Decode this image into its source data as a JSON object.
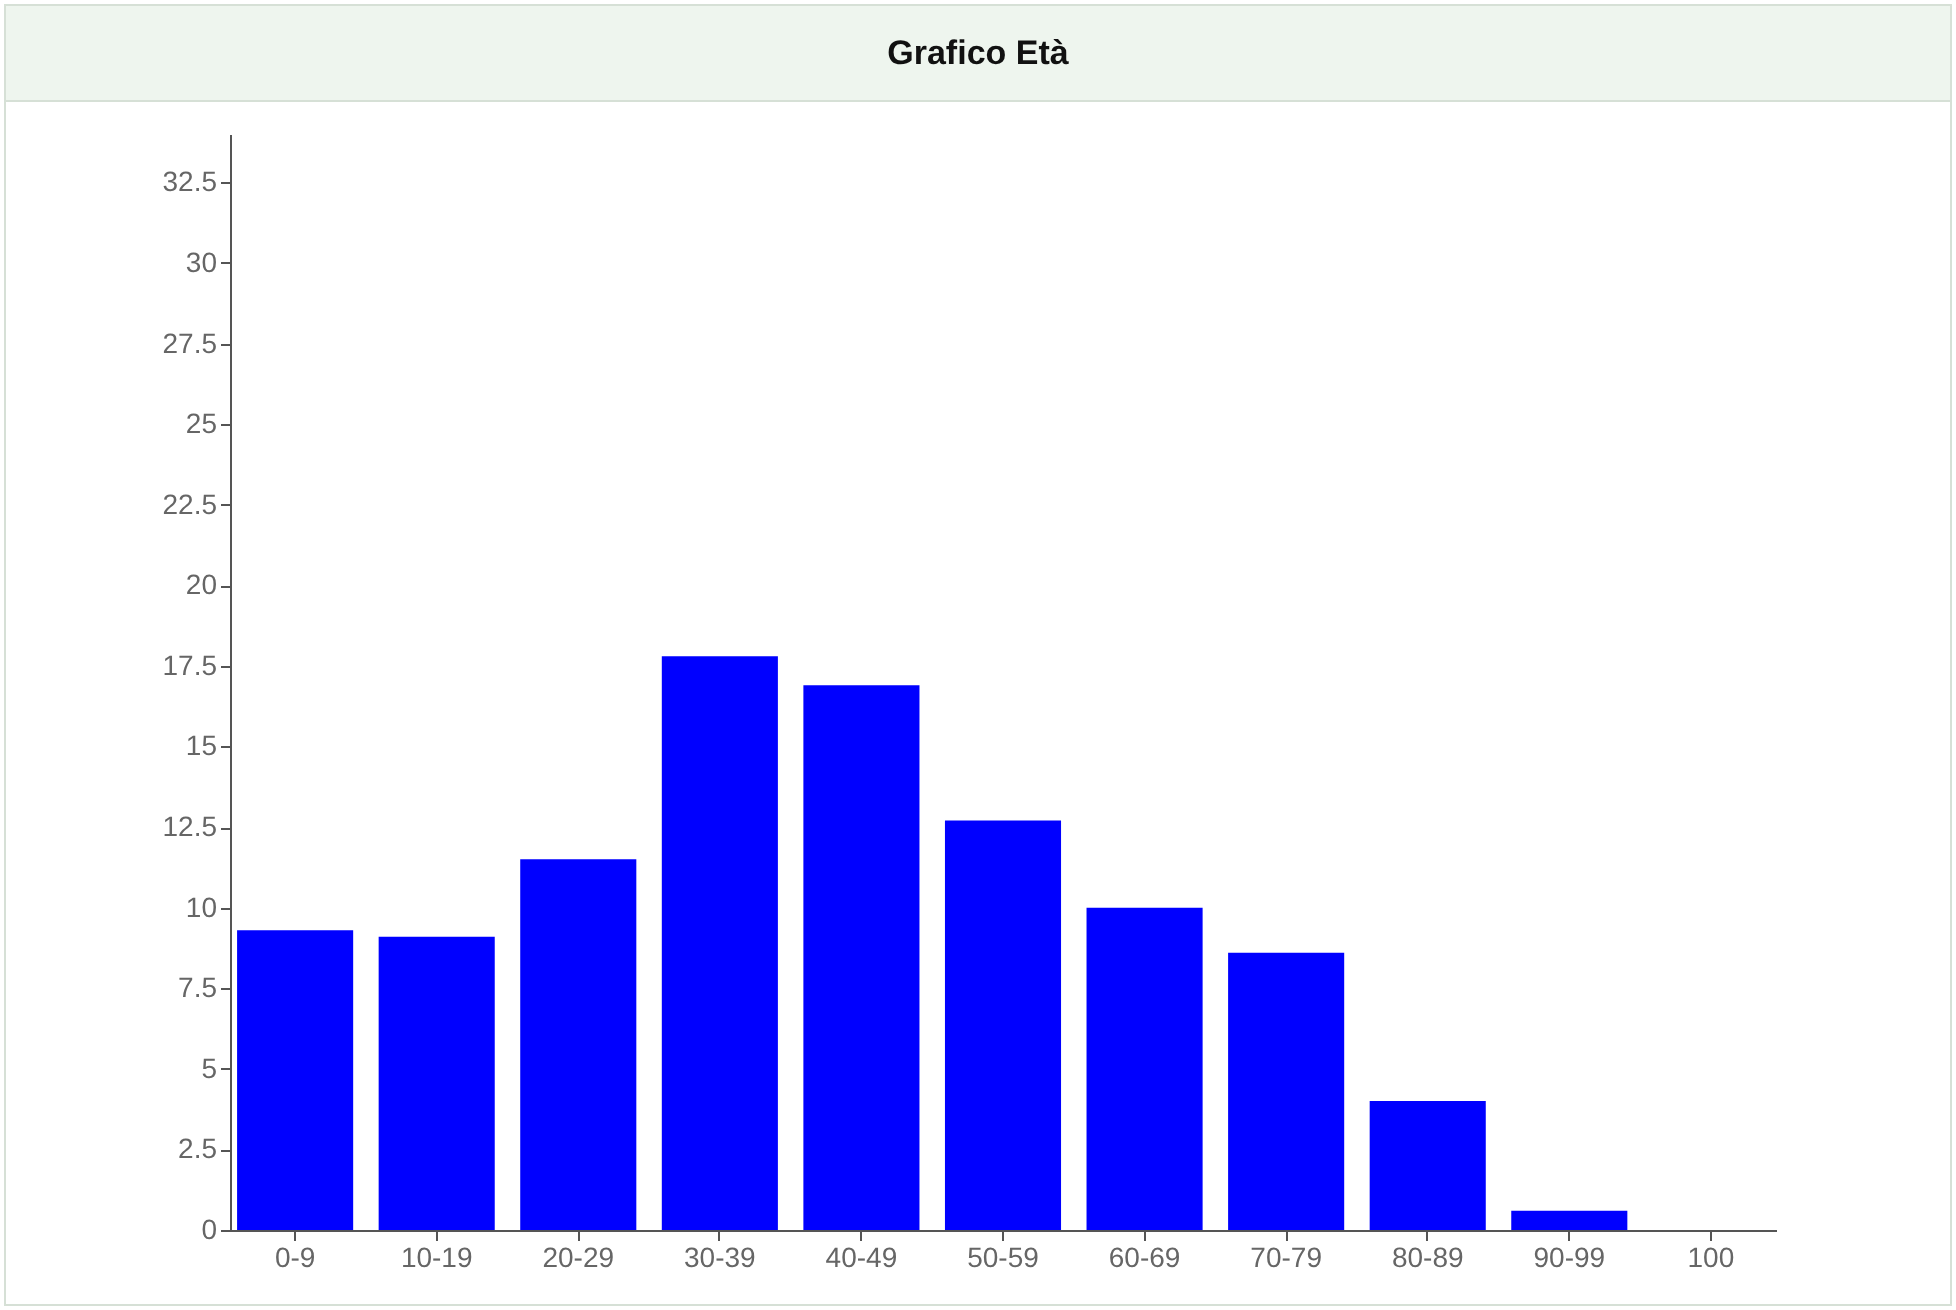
{
  "chart_data": {
    "type": "bar",
    "title": "Grafico Età",
    "categories": [
      "0-9",
      "10-19",
      "20-29",
      "30-39",
      "40-49",
      "50-59",
      "60-69",
      "70-79",
      "80-89",
      "90-99",
      "100"
    ],
    "values": [
      9.3,
      9.1,
      11.5,
      17.8,
      16.9,
      12.7,
      10,
      8.6,
      4,
      0.6,
      0
    ],
    "color": "#0000ff",
    "ylim": [
      0,
      34
    ],
    "yticks": [
      0,
      2.5,
      5,
      7.5,
      10,
      12.5,
      15,
      17.5,
      20,
      22.5,
      25,
      27.5,
      30,
      32.5
    ],
    "grid": false
  }
}
